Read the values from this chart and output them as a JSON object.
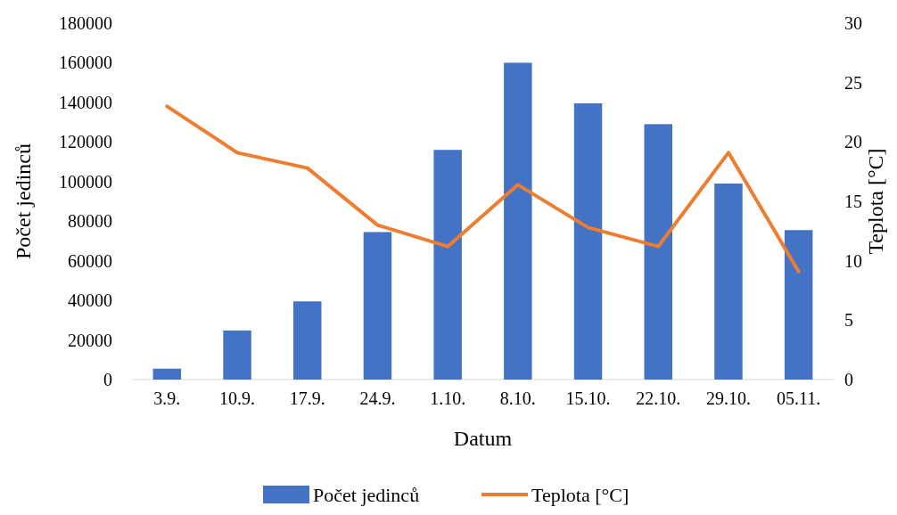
{
  "chart_data": {
    "type": "bar",
    "xlabel": "Datum",
    "ylabel": "Počet jedinců",
    "y2label": "Teplota [°C]",
    "categories": [
      "3.9.",
      "10.9.",
      "17.9.",
      "24.9.",
      "1.10.",
      "8.10.",
      "15.10.",
      "22.10.",
      "29.10.",
      "05.11."
    ],
    "series": [
      {
        "name": "Počet jedinců",
        "color": "#4472c4",
        "values": [
          5500,
          24800,
          39500,
          74500,
          116000,
          160000,
          139500,
          129000,
          99000,
          75500
        ]
      },
      {
        "name": "Teplota [°C]",
        "type": "line",
        "axis": "y2",
        "color": "#ed7d31",
        "values": [
          23,
          19.1,
          17.8,
          13,
          11.2,
          16.4,
          12.8,
          11.2,
          19.1,
          9.1
        ]
      }
    ],
    "ylim": [
      0,
      180000
    ],
    "yticks": [
      0,
      20000,
      40000,
      60000,
      80000,
      100000,
      120000,
      140000,
      160000,
      180000
    ],
    "y2lim": [
      0,
      30
    ],
    "y2ticks": [
      0,
      5,
      10,
      15,
      20,
      25,
      30
    ],
    "grid": false,
    "legend": "bottom",
    "marker": "none",
    "line_style": "solid"
  }
}
